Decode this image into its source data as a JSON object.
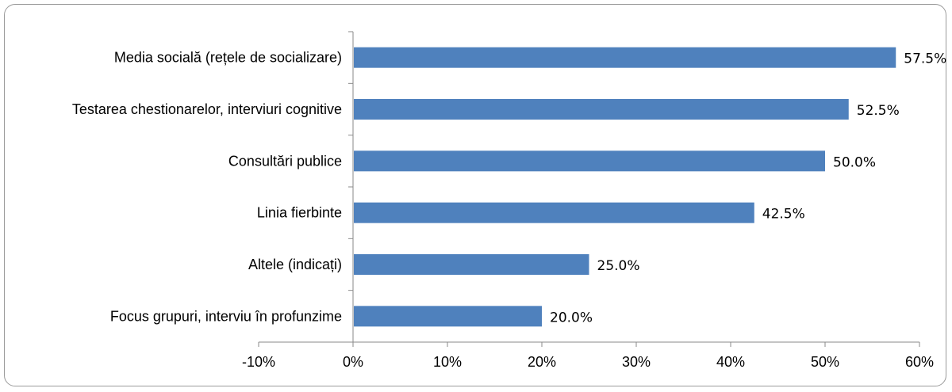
{
  "chart_data": {
    "type": "bar",
    "orientation": "horizontal",
    "categories": [
      "Media socială (rețele de socializare)",
      "Testarea chestionarelor, interviuri cognitive",
      "Consultări publice",
      "Linia fierbinte",
      "Altele (indicați)",
      "Focus grupuri, interviu în profunzime"
    ],
    "values": [
      57.5,
      52.5,
      50.0,
      42.5,
      25.0,
      20.0
    ],
    "value_labels": [
      "57.5%",
      "52.5%",
      "50.0%",
      "42.5%",
      "25.0%",
      "20.0%"
    ],
    "xlim": [
      -10,
      60
    ],
    "x_ticks": [
      -10,
      0,
      10,
      20,
      30,
      40,
      50,
      60
    ],
    "x_tick_labels": [
      "-10%",
      "0%",
      "10%",
      "20%",
      "30%",
      "40%",
      "50%",
      "60%"
    ],
    "bar_color": "#4f81bd",
    "grid": false,
    "legend": "none"
  }
}
